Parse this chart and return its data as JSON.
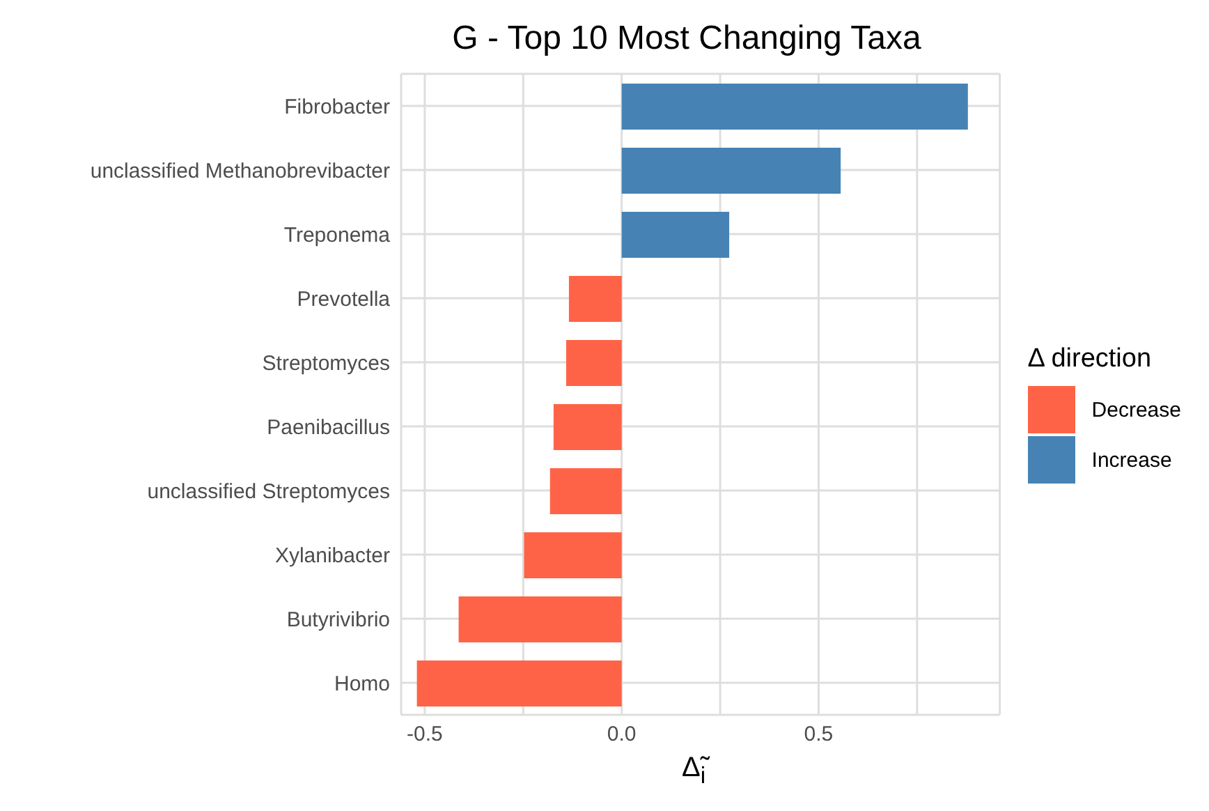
{
  "chart_data": {
    "type": "bar",
    "orientation": "horizontal",
    "title": "G - Top 10 Most Changing Taxa",
    "xlabel": "Δ̃$_{i}$",
    "legend_title": "Δ direction",
    "categories": [
      "Fibrobacter",
      "unclassified Methanobrevibacter",
      "Treponema",
      "Prevotella",
      "Streptomyces",
      "Paenibacillus",
      "unclassified Streptomyces",
      "Xylanibacter",
      "Butyrivibrio",
      "Homo"
    ],
    "series": [
      {
        "name": "Decrease",
        "color": "#ff6347",
        "values": [
          null,
          null,
          null,
          -0.134,
          -0.141,
          -0.173,
          -0.182,
          -0.248,
          -0.414,
          -0.52
        ]
      },
      {
        "name": "Increase",
        "color": "#4682b4",
        "values": [
          0.879,
          0.556,
          0.273,
          null,
          null,
          null,
          null,
          null,
          null,
          null
        ]
      }
    ],
    "xlim": [
      -0.56,
      0.96
    ],
    "xticks": [
      {
        "value": -0.5,
        "label": "-0.5"
      },
      {
        "value": -0.25,
        "label": null
      },
      {
        "value": 0,
        "label": "0.0"
      },
      {
        "value": 0.25,
        "label": null
      },
      {
        "value": 0.5,
        "label": "0.5"
      },
      {
        "value": 0.75,
        "label": null
      }
    ],
    "grid": true,
    "legend": "right"
  }
}
